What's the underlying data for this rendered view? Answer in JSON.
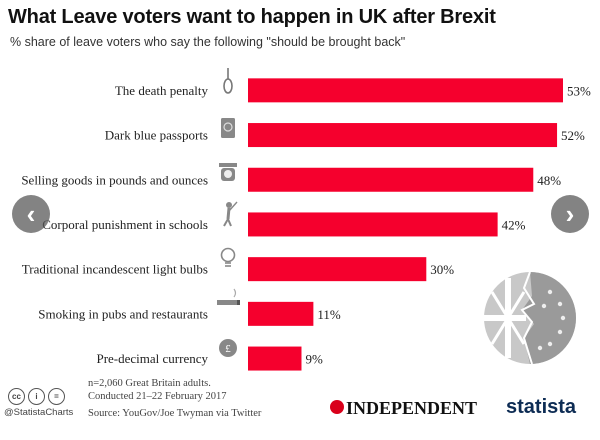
{
  "header": {
    "title": "What Leave voters want to happen in UK after Brexit",
    "subtitle": "% share of leave voters who say the following \"should be brought back\""
  },
  "chart_data": {
    "type": "bar",
    "orientation": "horizontal",
    "categories": [
      "The death penalty",
      "Dark blue passports",
      "Selling goods in pounds and ounces",
      "Corporal punishment in schools",
      "Traditional incandescent light bulbs",
      "Smoking in pubs and restaurants",
      "Pre-decimal currency"
    ],
    "values": [
      53,
      52,
      48,
      42,
      30,
      11,
      9
    ],
    "value_labels": [
      "53%",
      "52%",
      "48%",
      "42%",
      "30%",
      "11%",
      "9%"
    ],
    "xlim": [
      0,
      53
    ],
    "bar_color": "#f5002d",
    "grid": false,
    "icons": [
      "noose-icon",
      "passport-icon",
      "weighing-scale-icon",
      "cane-figure-icon",
      "lightbulb-icon",
      "cigarette-icon",
      "pound-coin-icon"
    ]
  },
  "footer": {
    "note_line1": "n=2,060 Great Britain adults.",
    "note_line2": "Conducted 21–22 February 2017",
    "source": "Source: YouGov/Joe Twyman via Twitter",
    "handle": "@StatistaCharts",
    "cc_badges": [
      "cc",
      "i",
      "="
    ],
    "brand_independent": "INDEPENDENT",
    "brand_statista": "statista"
  },
  "colors": {
    "bar": "#f5002d",
    "statista_navy": "#0d2c54",
    "independent_red": "#d9001b"
  },
  "nav": {
    "prev_glyph": "‹",
    "next_glyph": "›"
  }
}
